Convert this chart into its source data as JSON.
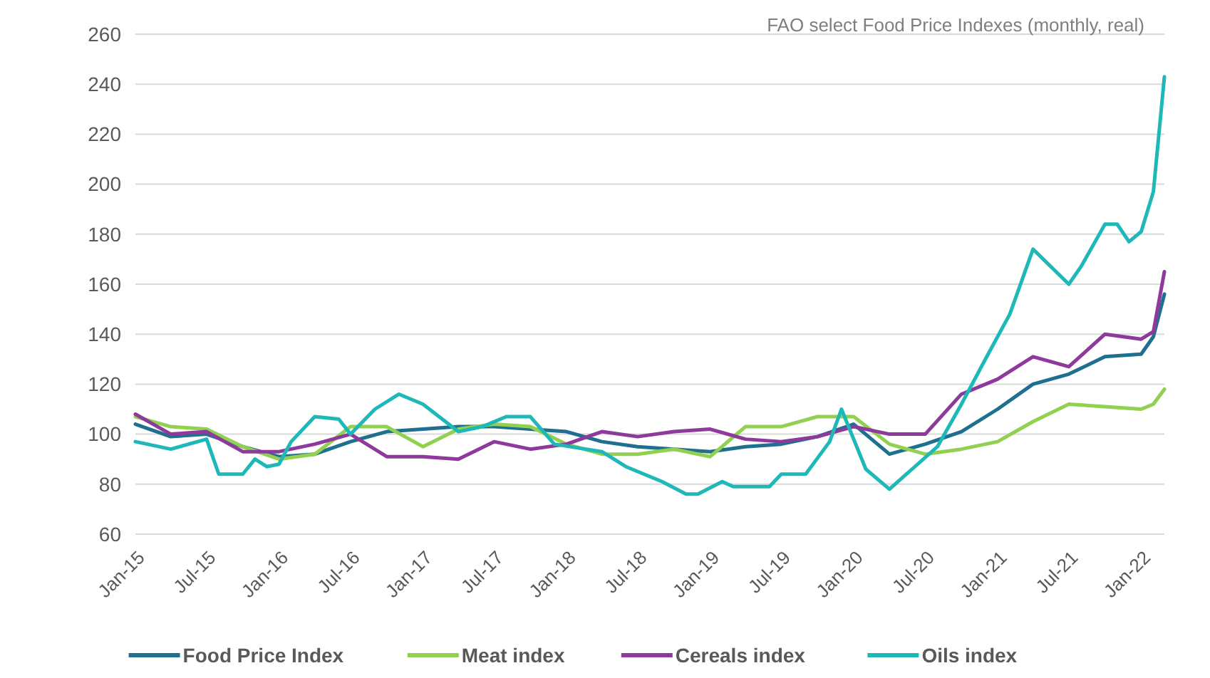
{
  "chart_data": {
    "type": "line",
    "title": "FAO select Food Price Indexes (monthly, real)",
    "x": [
      "2015-01",
      "2015-04",
      "2015-07",
      "2015-10",
      "2016-01",
      "2016-04",
      "2016-07",
      "2016-10",
      "2017-01",
      "2017-04",
      "2017-07",
      "2017-10",
      "2018-01",
      "2018-04",
      "2018-07",
      "2018-10",
      "2019-01",
      "2019-04",
      "2019-07",
      "2019-10",
      "2020-01",
      "2020-04",
      "2020-07",
      "2020-10",
      "2021-01",
      "2021-04",
      "2021-07",
      "2021-10",
      "2022-01",
      "2022-02",
      "2022-03"
    ],
    "series": [
      {
        "name": "Food Price Index",
        "color": "#1f6f8f",
        "values": [
          104,
          99,
          100,
          95,
          91,
          92,
          97,
          101,
          102,
          103,
          103,
          102,
          101,
          97,
          95,
          94,
          93,
          95,
          96,
          99,
          104,
          92,
          96,
          101,
          110,
          120,
          124,
          131,
          132,
          139,
          156
        ]
      },
      {
        "name": "Meat index",
        "color": "#92d050",
        "values": [
          107,
          103,
          102,
          95,
          90,
          92,
          103,
          103,
          95,
          102,
          104,
          103,
          96,
          92,
          92,
          94,
          91,
          103,
          103,
          107,
          107,
          96,
          92,
          94,
          97,
          105,
          112,
          111,
          110,
          112,
          118
        ]
      },
      {
        "name": "Cereals index",
        "color": "#8e3a9c",
        "values": [
          108,
          100,
          101,
          93,
          93,
          96,
          100,
          91,
          91,
          90,
          97,
          94,
          96,
          101,
          99,
          101,
          102,
          98,
          97,
          99,
          103,
          100,
          100,
          116,
          122,
          131,
          127,
          140,
          138,
          141,
          165
        ]
      },
      {
        "name": "Oils index",
        "color": "#1fb8b8",
        "x": [
          "2015-01",
          "2015-04",
          "2015-07",
          "2015-08",
          "2015-10",
          "2015-11",
          "2015-12",
          "2016-01",
          "2016-02",
          "2016-04",
          "2016-06",
          "2016-07",
          "2016-09",
          "2016-11",
          "2017-01",
          "2017-04",
          "2017-06",
          "2017-08",
          "2017-10",
          "2017-12",
          "2018-04",
          "2018-06",
          "2018-09",
          "2018-11",
          "2018-12",
          "2019-02",
          "2019-03",
          "2019-06",
          "2019-07",
          "2019-09",
          "2019-11",
          "2019-12",
          "2020-02",
          "2020-04",
          "2020-08",
          "2020-10",
          "2020-12",
          "2021-02",
          "2021-04",
          "2021-07",
          "2021-08",
          "2021-10",
          "2021-11",
          "2021-12",
          "2022-01",
          "2022-02",
          "2022-03"
        ],
        "values": [
          97,
          94,
          98,
          84,
          84,
          90,
          87,
          88,
          97,
          107,
          106,
          100,
          110,
          116,
          112,
          101,
          103,
          107,
          107,
          96,
          93,
          87,
          81,
          76,
          76,
          81,
          79,
          79,
          84,
          84,
          97,
          110,
          86,
          78,
          95,
          112,
          130,
          148,
          174,
          160,
          167,
          184,
          184,
          177,
          181,
          197,
          243
        ]
      }
    ],
    "xlim": [
      "2015-01",
      "2022-03"
    ],
    "xticks": [
      {
        "value": "2015-01",
        "label": "Jan-15"
      },
      {
        "value": "2015-07",
        "label": "Jul-15"
      },
      {
        "value": "2016-01",
        "label": "Jan-16"
      },
      {
        "value": "2016-07",
        "label": "Jul-16"
      },
      {
        "value": "2017-01",
        "label": "Jan-17"
      },
      {
        "value": "2017-07",
        "label": "Jul-17"
      },
      {
        "value": "2018-01",
        "label": "Jan-18"
      },
      {
        "value": "2018-07",
        "label": "Jul-18"
      },
      {
        "value": "2019-01",
        "label": "Jan-19"
      },
      {
        "value": "2019-07",
        "label": "Jul-19"
      },
      {
        "value": "2020-01",
        "label": "Jan-20"
      },
      {
        "value": "2020-07",
        "label": "Jul-20"
      },
      {
        "value": "2021-01",
        "label": "Jan-21"
      },
      {
        "value": "2021-07",
        "label": "Jul-21"
      },
      {
        "value": "2022-01",
        "label": "Jan-22"
      }
    ],
    "ylim": [
      60,
      260
    ],
    "yticks": [
      60,
      80,
      100,
      120,
      140,
      160,
      180,
      200,
      220,
      240,
      260
    ],
    "grid": "y",
    "legend": "bottom",
    "line_style": "solid"
  }
}
